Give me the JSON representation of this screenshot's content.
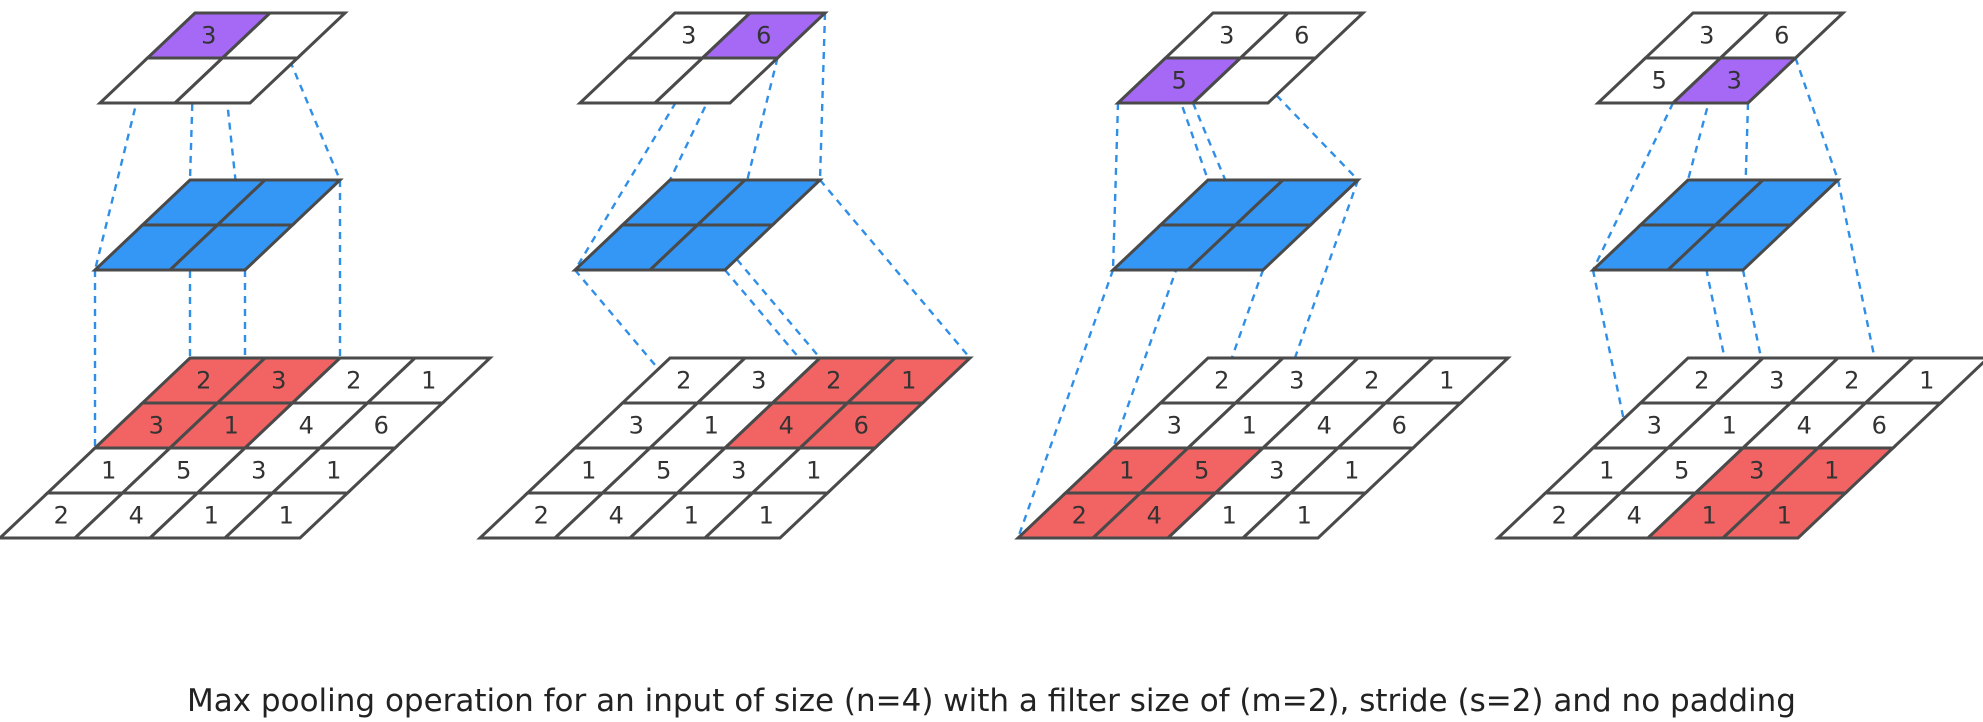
{
  "caption": "Max pooling operation for an input of size (n=4) with a filter size of (m=2), stride (s=2) and no padding",
  "colors": {
    "highlight_input": "#f26464",
    "filter": "#3597f5",
    "highlight_output": "#a569f5",
    "cell_plain": "#ffffff",
    "outline": "#4a4a4a",
    "guide": "#2f8fe8"
  },
  "input_grid": [
    [
      "2",
      "3",
      "2",
      "1"
    ],
    [
      "3",
      "1",
      "4",
      "6"
    ],
    [
      "1",
      "5",
      "3",
      "1"
    ],
    [
      "2",
      "4",
      "1",
      "1"
    ]
  ],
  "steps": [
    {
      "window": [
        0,
        0
      ],
      "output": [
        [
          "3",
          ""
        ],
        [
          "",
          ""
        ]
      ],
      "active": [
        0,
        0
      ]
    },
    {
      "window": [
        0,
        2
      ],
      "output": [
        [
          "3",
          "6"
        ],
        [
          "",
          ""
        ]
      ],
      "active": [
        0,
        1
      ]
    },
    {
      "window": [
        2,
        0
      ],
      "output": [
        [
          "3",
          "6"
        ],
        [
          "5",
          ""
        ]
      ],
      "active": [
        1,
        0
      ]
    },
    {
      "window": [
        2,
        2
      ],
      "output": [
        [
          "3",
          "6"
        ],
        [
          "5",
          "3"
        ]
      ],
      "active": [
        1,
        1
      ]
    }
  ]
}
